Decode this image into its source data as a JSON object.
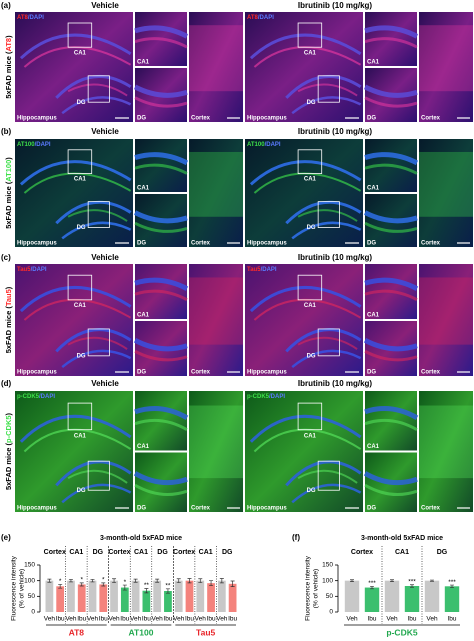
{
  "panels": [
    {
      "letter": "(a)",
      "side_label": [
        "5xFAD mice (",
        "AT8",
        ")"
      ],
      "groups": [
        {
          "heading": "Vehicle",
          "stain": [
            "AT8",
            "/DAPI"
          ],
          "box_labels": [
            "CA1",
            "DG"
          ],
          "main_label": "Hippocampus",
          "inset_labels": [
            "CA1",
            "DG"
          ],
          "cortex_label": "Cortex"
        },
        {
          "heading": "Ibrutinib (10 mg/kg)",
          "stain": [
            "AT8",
            "/DAPI"
          ],
          "box_labels": [
            "CA1",
            "DG"
          ],
          "main_label": "Hippocampus",
          "inset_labels": [
            "CA1",
            "DG"
          ],
          "cortex_label": "Cortex"
        }
      ]
    },
    {
      "letter": "(b)",
      "side_label": [
        "5xFAD mice (",
        "AT100",
        ")"
      ],
      "groups": [
        {
          "heading": "Vehicle",
          "stain": [
            "AT100",
            "/DAPI"
          ],
          "box_labels": [
            "CA1",
            "DG"
          ],
          "main_label": "Hippocampus",
          "inset_labels": [
            "CA1",
            "DG"
          ],
          "cortex_label": "Cortex"
        },
        {
          "heading": "Ibrutinib (10 mg/kg)",
          "stain": [
            "AT100",
            "/DAPI"
          ],
          "box_labels": [
            "CA1",
            "DG"
          ],
          "main_label": "Hippocampus",
          "inset_labels": [
            "CA1",
            "DG"
          ],
          "cortex_label": "Cortex"
        }
      ]
    },
    {
      "letter": "(c)",
      "side_label": [
        "5xFAD mice (",
        "Tau5",
        ")"
      ],
      "groups": [
        {
          "heading": "Vehicle",
          "stain": [
            "Tau5",
            "/DAPI"
          ],
          "box_labels": [
            "CA1",
            "DG"
          ],
          "main_label": "Hippocampus",
          "inset_labels": [
            "CA1",
            "DG"
          ],
          "cortex_label": "Cortex"
        },
        {
          "heading": "Ibrutinib (10 mg/kg)",
          "stain": [
            "Tau5",
            "/DAPI"
          ],
          "box_labels": [
            "CA1",
            "DG"
          ],
          "main_label": "Hippocampus",
          "inset_labels": [
            "CA1",
            "DG"
          ],
          "cortex_label": "Cortex"
        }
      ]
    },
    {
      "letter": "(d)",
      "side_label": [
        "5xFAD mice (",
        "p-CDK5",
        ")"
      ],
      "groups": [
        {
          "heading": "Vehicle",
          "stain": [
            "p-CDK5",
            "/DAPI"
          ],
          "box_labels": [
            "CA1",
            "DG"
          ],
          "main_label": "Hippocampus",
          "inset_labels": [
            "CA1",
            "DG"
          ],
          "cortex_label": "Cortex"
        },
        {
          "heading": "Ibrutinib (10 mg/kg)",
          "stain": [
            "p-CDK5",
            "/DAPI"
          ],
          "box_labels": [
            "CA1",
            "DG"
          ],
          "main_label": "Hippocampus",
          "inset_labels": [
            "CA1",
            "DG"
          ],
          "cortex_label": "Cortex"
        }
      ]
    }
  ],
  "chart_data": [
    {
      "type": "bar",
      "label": "(e)",
      "title": "3-month-old 5xFAD mice",
      "ylabel": [
        "Fluorescence intensity",
        "(% of vehicle)"
      ],
      "ylim": [
        0,
        150
      ],
      "yticks": [
        0,
        50,
        100,
        150
      ],
      "veh_color": "#c8c8c8",
      "markers": [
        {
          "name": "AT8",
          "color": "#f4837d",
          "label_color": "#e8262b",
          "regions": [
            {
              "name": "Cortex",
              "categories": [
                "Veh",
                "Ibu"
              ],
              "values": [
                100,
                82
              ],
              "errors": [
                5,
                6
              ],
              "significance": "*"
            },
            {
              "name": "CA1",
              "categories": [
                "Veh",
                "Ibu"
              ],
              "values": [
                100,
                88
              ],
              "errors": [
                4,
                5
              ],
              "significance": "*"
            },
            {
              "name": "DG",
              "categories": [
                "Veh",
                "Ibu"
              ],
              "values": [
                100,
                88
              ],
              "errors": [
                4,
                5
              ],
              "significance": "*"
            }
          ]
        },
        {
          "name": "AT100",
          "color": "#3bbf6e",
          "label_color": "#22a84f",
          "regions": [
            {
              "name": "Cortex",
              "categories": [
                "Veh",
                "Ibu"
              ],
              "values": [
                100,
                78
              ],
              "errors": [
                6,
                8
              ],
              "significance": "*"
            },
            {
              "name": "CA1",
              "categories": [
                "Veh",
                "Ibu"
              ],
              "values": [
                100,
                68
              ],
              "errors": [
                5,
                7
              ],
              "significance": "**"
            },
            {
              "name": "DG",
              "categories": [
                "Veh",
                "Ibu"
              ],
              "values": [
                100,
                67
              ],
              "errors": [
                5,
                7
              ],
              "significance": "**"
            }
          ]
        },
        {
          "name": "Tau5",
          "color": "#f4837d",
          "label_color": "#e8262b",
          "regions": [
            {
              "name": "Cortex",
              "categories": [
                "Veh",
                "Ibu"
              ],
              "values": [
                100,
                100
              ],
              "errors": [
                6,
                7
              ]
            },
            {
              "name": "CA1",
              "categories": [
                "Veh",
                "Ibu"
              ],
              "values": [
                100,
                92
              ],
              "errors": [
                6,
                8
              ]
            },
            {
              "name": "DG",
              "categories": [
                "Veh",
                "Ibu"
              ],
              "values": [
                100,
                90
              ],
              "errors": [
                7,
                9
              ]
            }
          ]
        }
      ]
    },
    {
      "type": "bar",
      "label": "(f)",
      "title": "3-month-old 5xFAD mice",
      "ylabel": [
        "Fluorescence intensity",
        "(% of vehicle)"
      ],
      "ylim": [
        0,
        150
      ],
      "yticks": [
        0,
        50,
        100,
        150
      ],
      "veh_color": "#c8c8c8",
      "markers": [
        {
          "name": "p-CDK5",
          "color": "#3bbf6e",
          "label_color": "#22a84f",
          "regions": [
            {
              "name": "Cortex",
              "categories": [
                "Veh",
                "Ibu"
              ],
              "values": [
                100,
                78
              ],
              "errors": [
                3,
                4
              ],
              "significance": "***"
            },
            {
              "name": "CA1",
              "categories": [
                "Veh",
                "Ibu"
              ],
              "values": [
                100,
                83
              ],
              "errors": [
                3,
                4
              ],
              "significance": "***"
            },
            {
              "name": "DG",
              "categories": [
                "Veh",
                "Ibu"
              ],
              "values": [
                100,
                82
              ],
              "errors": [
                2,
                4
              ],
              "significance": "***"
            }
          ]
        }
      ]
    }
  ]
}
